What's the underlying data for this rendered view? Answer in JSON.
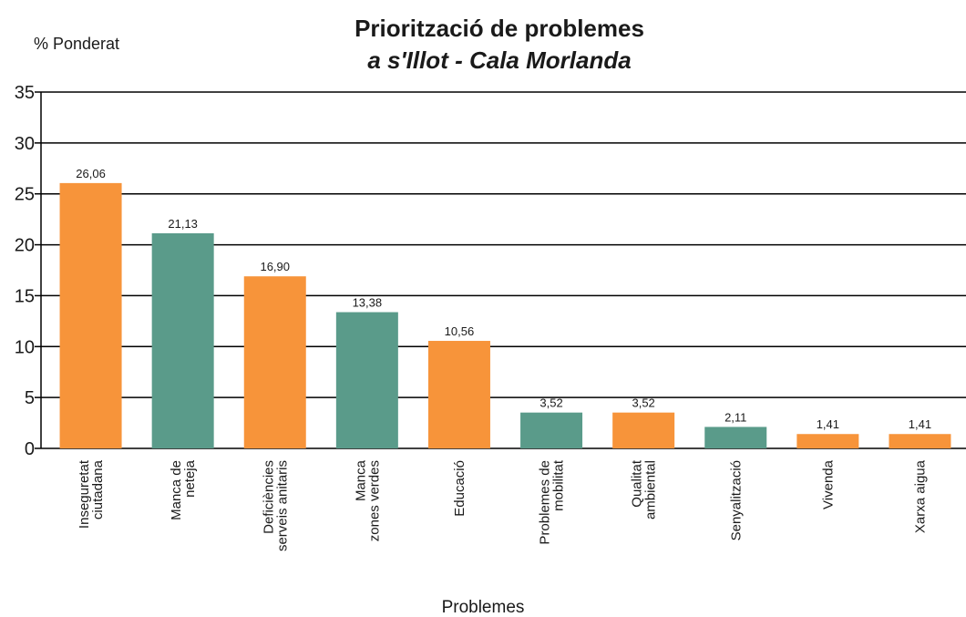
{
  "chart_data": {
    "type": "bar",
    "title": "Priorització de problemes",
    "subtitle": "a s'Illot - Cala Morlanda",
    "y_label": "% Ponderat",
    "x_label": "Problemes",
    "categories": [
      [
        "Inseguretat",
        "ciutadana"
      ],
      [
        "Manca de",
        "neteja"
      ],
      [
        "Deficiències",
        "serveis anitaris"
      ],
      [
        "Manca",
        "zones verdes"
      ],
      [
        "Educació"
      ],
      [
        "Problemes de",
        "mobilitat"
      ],
      [
        "Qualitat",
        "ambiental"
      ],
      [
        "Senyalització"
      ],
      [
        "Vivenda"
      ],
      [
        "Xarxa aigua"
      ]
    ],
    "values": [
      26.06,
      21.13,
      16.9,
      13.38,
      10.56,
      3.52,
      3.52,
      2.11,
      1.41,
      1.41
    ],
    "value_labels": [
      "26,06",
      "21,13",
      "16,90",
      "13,38",
      "10,56",
      "3,52",
      "3,52",
      "2,11",
      "1,41",
      "1,41"
    ],
    "colors": [
      "#f7943a",
      "#5a9b8a",
      "#f7943a",
      "#5a9b8a",
      "#f7943a",
      "#5a9b8a",
      "#f7943a",
      "#5a9b8a",
      "#f7943a",
      "#f7943a"
    ],
    "ylim": [
      0,
      35
    ],
    "yticks": [
      0,
      5,
      10,
      15,
      20,
      25,
      30,
      35
    ],
    "grid": true
  }
}
